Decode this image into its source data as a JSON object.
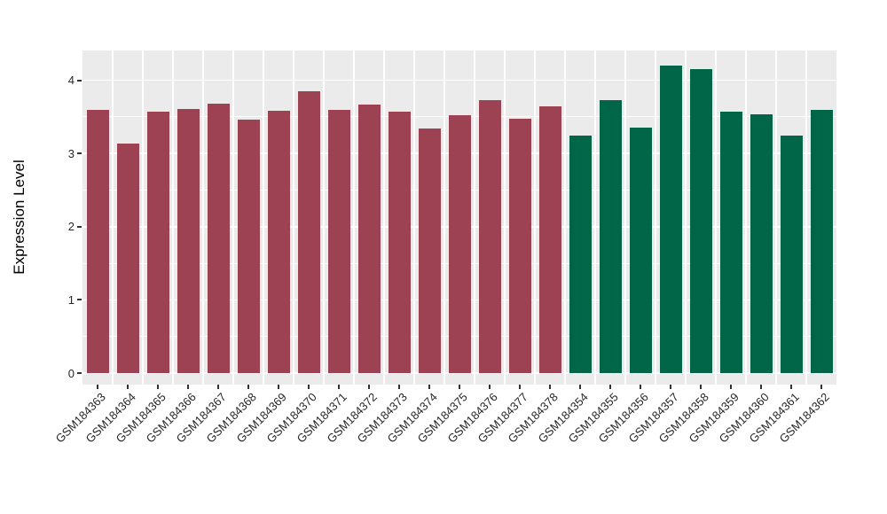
{
  "chart_data": {
    "type": "bar",
    "title": "",
    "xlabel": "",
    "ylabel": "Expression Level",
    "ylim": [
      0,
      4.42
    ],
    "yticks": [
      0,
      1,
      2,
      3,
      4
    ],
    "y_minor_ticks": [
      0.5,
      1.5,
      2.5,
      3.5
    ],
    "grid": "major and minor white gridlines on gray panel",
    "legend_position": "none",
    "panel_background": "#EBEBEB",
    "gridline_color": "#FFFFFF",
    "tick_color": "#333333",
    "tick_label_color": "#262626",
    "group_colors": {
      "group1": "#9C4252",
      "group2": "#006647"
    },
    "bars": [
      {
        "label": "GSM184363",
        "value": 3.6,
        "group": "group1"
      },
      {
        "label": "GSM184364",
        "value": 3.14,
        "group": "group1"
      },
      {
        "label": "GSM184365",
        "value": 3.57,
        "group": "group1"
      },
      {
        "label": "GSM184366",
        "value": 3.61,
        "group": "group1"
      },
      {
        "label": "GSM184367",
        "value": 3.68,
        "group": "group1"
      },
      {
        "label": "GSM184368",
        "value": 3.46,
        "group": "group1"
      },
      {
        "label": "GSM184369",
        "value": 3.58,
        "group": "group1"
      },
      {
        "label": "GSM184370",
        "value": 3.85,
        "group": "group1"
      },
      {
        "label": "GSM184371",
        "value": 3.6,
        "group": "group1"
      },
      {
        "label": "GSM184372",
        "value": 3.67,
        "group": "group1"
      },
      {
        "label": "GSM184373",
        "value": 3.57,
        "group": "group1"
      },
      {
        "label": "GSM184374",
        "value": 3.34,
        "group": "group1"
      },
      {
        "label": "GSM184375",
        "value": 3.52,
        "group": "group1"
      },
      {
        "label": "GSM184376",
        "value": 3.73,
        "group": "group1"
      },
      {
        "label": "GSM184377",
        "value": 3.48,
        "group": "group1"
      },
      {
        "label": "GSM184378",
        "value": 3.65,
        "group": "group1"
      },
      {
        "label": "GSM184354",
        "value": 3.24,
        "group": "group2"
      },
      {
        "label": "GSM184355",
        "value": 3.73,
        "group": "group2"
      },
      {
        "label": "GSM184356",
        "value": 3.35,
        "group": "group2"
      },
      {
        "label": "GSM184357",
        "value": 4.2,
        "group": "group2"
      },
      {
        "label": "GSM184358",
        "value": 4.15,
        "group": "group2"
      },
      {
        "label": "GSM184359",
        "value": 3.57,
        "group": "group2"
      },
      {
        "label": "GSM184360",
        "value": 3.53,
        "group": "group2"
      },
      {
        "label": "GSM184361",
        "value": 3.24,
        "group": "group2"
      },
      {
        "label": "GSM184362",
        "value": 3.59,
        "group": "group2"
      }
    ]
  }
}
